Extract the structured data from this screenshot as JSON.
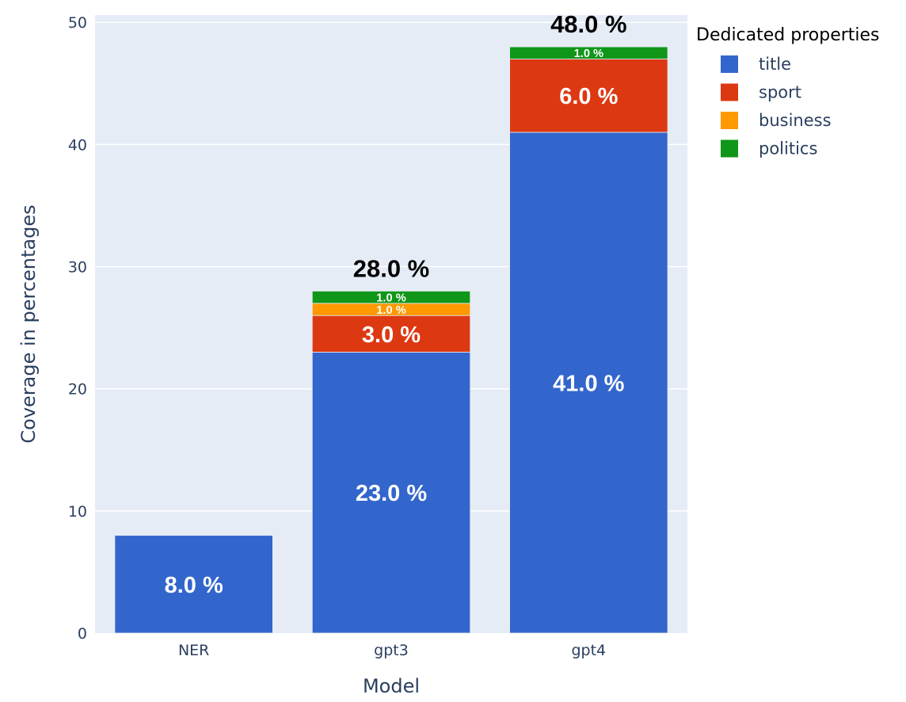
{
  "chart_data": {
    "type": "bar",
    "barmode": "stack",
    "categories": [
      "NER",
      "gpt3",
      "gpt4"
    ],
    "series": [
      {
        "name": "title",
        "color": "#3366CC",
        "values": [
          8,
          23,
          41
        ],
        "labels": [
          "8.0 %",
          "23.0 %",
          "41.0 %"
        ]
      },
      {
        "name": "sport",
        "color": "#DC3912",
        "values": [
          0,
          3,
          6
        ],
        "labels": [
          "",
          "3.0 %",
          "6.0 %"
        ]
      },
      {
        "name": "business",
        "color": "#FF9900",
        "values": [
          0,
          1,
          0
        ],
        "labels": [
          "",
          "1.0 %",
          ""
        ]
      },
      {
        "name": "politics",
        "color": "#109618",
        "values": [
          0,
          1,
          1
        ],
        "labels": [
          "",
          "1.0 %",
          "1.0 %"
        ]
      }
    ],
    "totals": [
      null,
      "28.0 %",
      "48.0 %"
    ],
    "xlabel": "Model",
    "ylabel": "Coverage in percentages",
    "ylim": [
      0,
      50.6
    ],
    "yticks": [
      0,
      10,
      20,
      30,
      40,
      50
    ],
    "legend_title": "Dedicated properties",
    "legend_placement": "top-right",
    "grid": true,
    "plot_bg": "#E5ECF6"
  }
}
